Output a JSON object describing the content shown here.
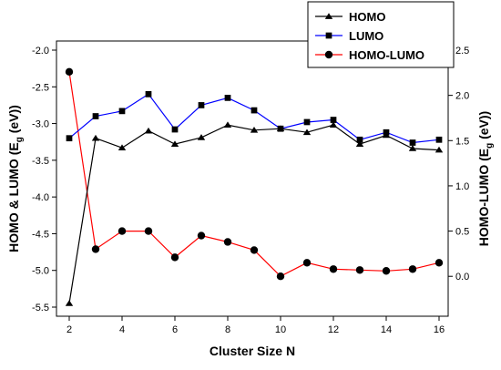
{
  "chart_data": {
    "type": "line",
    "xlabel": "Cluster Size N",
    "ylabel_left": {
      "main": "HOMO & LUMO (E",
      "sub": "g",
      "tail": " (eV))"
    },
    "ylabel_right": {
      "main": "HOMO-LUMO (E",
      "sub": "g",
      "tail": " (eV))"
    },
    "x": [
      2,
      3,
      4,
      5,
      6,
      7,
      8,
      9,
      10,
      11,
      12,
      13,
      14,
      15,
      16
    ],
    "xlim": [
      2,
      16
    ],
    "x_ticks": [
      "2",
      "4",
      "6",
      "8",
      "10",
      "12",
      "14",
      "16"
    ],
    "ylim_left": [
      -5.5,
      -2.0
    ],
    "y_ticks_left": [
      "-2.0",
      "-2.5",
      "-3.0",
      "-3.5",
      "-4.0",
      "-4.5",
      "-5.0",
      "-5.5"
    ],
    "ylim_right": [
      -0.3,
      2.5
    ],
    "y_ticks_right": [
      "0.0",
      "0.5",
      "1.0",
      "1.5",
      "2.0",
      "2.5"
    ],
    "grid": false,
    "legend_position": "top-right",
    "series": [
      {
        "name": "HOMO",
        "axis": "left",
        "color": "#000000",
        "marker": "triangle",
        "values": [
          -5.45,
          -3.2,
          -3.33,
          -3.1,
          -3.28,
          -3.19,
          -3.02,
          -3.09,
          -3.07,
          -3.12,
          -3.02,
          -3.28,
          -3.16,
          -3.34,
          -3.36
        ]
      },
      {
        "name": "LUMO",
        "axis": "left",
        "color": "#0000ff",
        "marker": "square",
        "values": [
          -3.2,
          -2.9,
          -2.83,
          -2.6,
          -3.08,
          -2.75,
          -2.65,
          -2.82,
          -3.07,
          -2.98,
          -2.95,
          -3.22,
          -3.12,
          -3.26,
          -3.22
        ]
      },
      {
        "name": "HOMO-LUMO",
        "axis": "right",
        "color": "#ff0000",
        "marker": "circle",
        "values": [
          2.26,
          0.3,
          0.5,
          0.5,
          0.21,
          0.45,
          0.38,
          0.29,
          0.0,
          0.15,
          0.08,
          0.07,
          0.06,
          0.08,
          0.15
        ]
      }
    ]
  }
}
